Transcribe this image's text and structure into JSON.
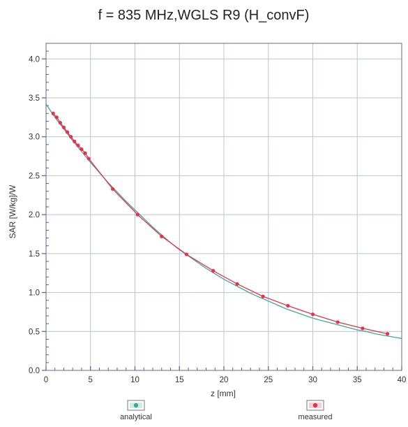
{
  "chart_data": {
    "type": "line",
    "title": "f = 835 MHz,WGLS R9 (H_convF)",
    "xlabel": "z [mm]",
    "ylabel": "SAR [W/kg]/W",
    "xlim": [
      0,
      40
    ],
    "ylim": [
      0.0,
      4.2
    ],
    "xticks": [
      "0",
      "5",
      "10",
      "15",
      "20",
      "25",
      "30",
      "35",
      "40"
    ],
    "yticks": [
      "0.0",
      "0.5",
      "1.0",
      "1.5",
      "2.0",
      "2.5",
      "3.0",
      "3.5",
      "4.0"
    ],
    "grid": true,
    "legend_position": "bottom",
    "series": [
      {
        "name": "analytical",
        "style": "line",
        "color": "#3fa796",
        "x": [
          0,
          1,
          2,
          3,
          4,
          5,
          6,
          7,
          8,
          9,
          10,
          11,
          12,
          13,
          14,
          15,
          16,
          17,
          18,
          19,
          20,
          21,
          22,
          23,
          24,
          25,
          26,
          27,
          28,
          29,
          30,
          31,
          32,
          33,
          34,
          35,
          36,
          37,
          38,
          39,
          40
        ],
        "y": [
          3.42,
          3.25,
          3.1,
          2.95,
          2.81,
          2.67,
          2.54,
          2.41,
          2.29,
          2.17,
          2.06,
          1.95,
          1.84,
          1.74,
          1.64,
          1.55,
          1.47,
          1.39,
          1.31,
          1.24,
          1.17,
          1.11,
          1.05,
          0.99,
          0.94,
          0.89,
          0.84,
          0.79,
          0.75,
          0.71,
          0.67,
          0.64,
          0.61,
          0.58,
          0.55,
          0.52,
          0.5,
          0.47,
          0.45,
          0.43,
          0.41
        ]
      },
      {
        "name": "measured",
        "style": "line+markers",
        "color": "#e8324a",
        "x": [
          0.8,
          1.2,
          1.6,
          2.0,
          2.4,
          2.8,
          3.2,
          3.6,
          4.0,
          4.4,
          4.8,
          7.5,
          10.3,
          13.0,
          15.8,
          18.8,
          21.5,
          24.4,
          27.2,
          30.0,
          32.8,
          35.6,
          38.4
        ],
        "y": [
          3.3,
          3.25,
          3.18,
          3.12,
          3.06,
          3.0,
          2.94,
          2.89,
          2.84,
          2.79,
          2.72,
          2.33,
          2.0,
          1.72,
          1.49,
          1.28,
          1.11,
          0.95,
          0.83,
          0.72,
          0.62,
          0.54,
          0.47
        ]
      }
    ]
  }
}
